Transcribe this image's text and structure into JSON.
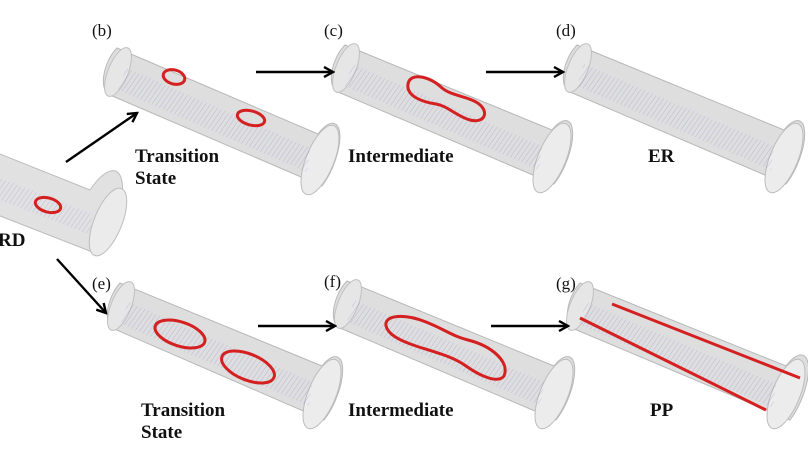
{
  "panels": {
    "a": {
      "caption": "RD"
    },
    "b": {
      "tag": "(b)",
      "caption_line1": "Transition",
      "caption_line2": "State"
    },
    "c": {
      "tag": "(c)",
      "caption": "Intermediate"
    },
    "d": {
      "tag": "(d)",
      "caption": "ER"
    },
    "e": {
      "tag": "(e)",
      "caption_line1": "Transition",
      "caption_line2": "State"
    },
    "f": {
      "tag": "(f)",
      "caption": "Intermediate"
    },
    "g": {
      "tag": "(g)",
      "caption": "PP"
    }
  },
  "colors": {
    "tube_fill": "#dcdcdc",
    "tube_edge": "#b4b4b4",
    "lattice": "#6a6ad8",
    "defect": "#d42020",
    "arrow": "#000000"
  }
}
